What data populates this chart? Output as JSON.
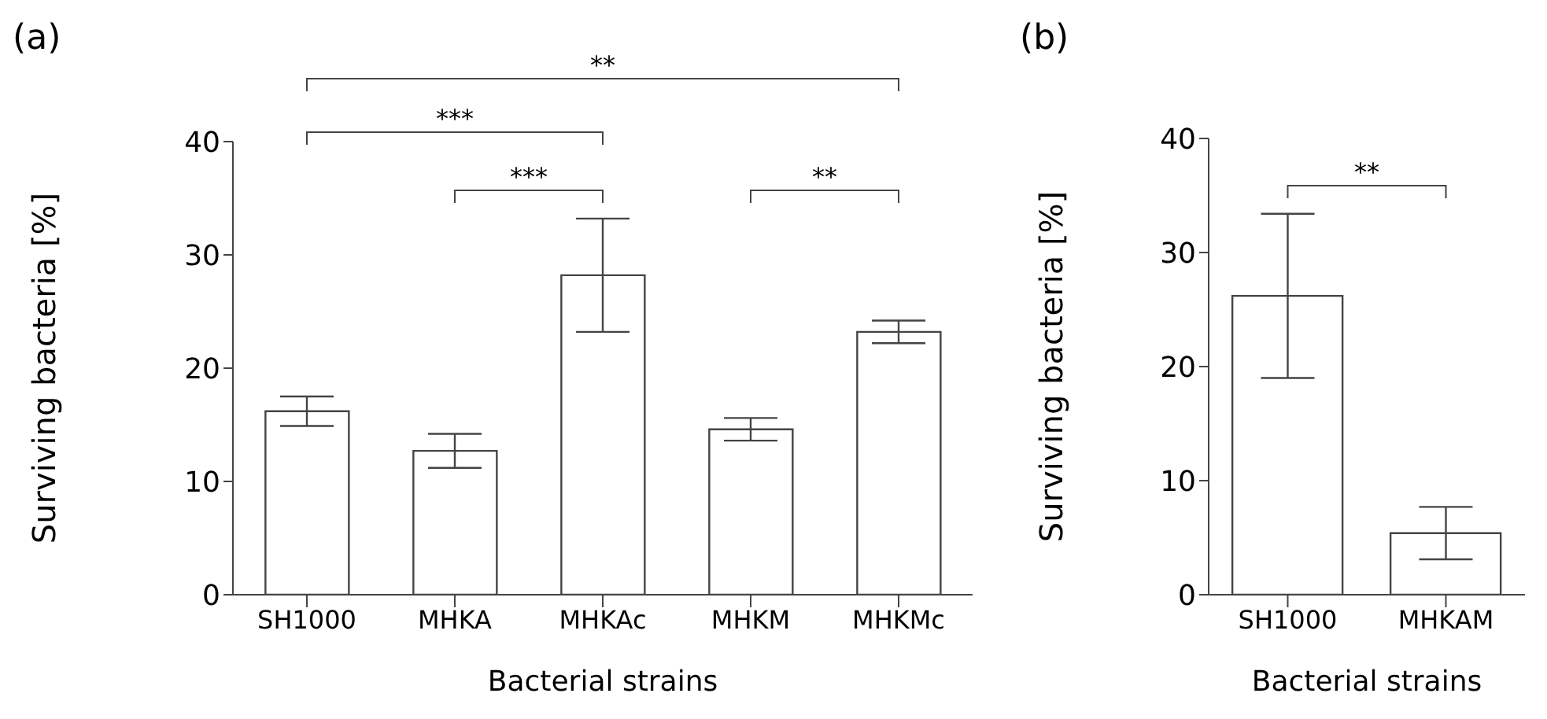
{
  "chart_data": [
    {
      "type": "bar",
      "title": "(a)",
      "xlabel": "Bacterial strains",
      "ylabel": "Surviving bacteria [%]",
      "categories": [
        "SH1000",
        "MHKA",
        "MHKAc",
        "MHKM",
        "MHKMc"
      ],
      "series": [
        {
          "color": "#ffffff",
          "values": [
            16.2,
            12.7,
            28.2,
            14.6,
            23.2
          ],
          "errors": [
            1.3,
            1.5,
            5.0,
            1.0,
            1.0
          ]
        }
      ],
      "ylim": [
        0,
        40
      ],
      "yticks": [
        0,
        10,
        20,
        30,
        40
      ],
      "grid": false,
      "legend": false,
      "annotations": [
        "**",
        "***",
        "***",
        "**"
      ]
    },
    {
      "type": "bar",
      "title": "(b)",
      "xlabel": "Bacterial strains",
      "ylabel": "Surviving bacteria [%]",
      "categories": [
        "SH1000",
        "MHKAM"
      ],
      "series": [
        {
          "color": "#ffffff",
          "values": [
            26.2,
            5.4
          ],
          "errors": [
            7.2,
            2.3
          ]
        }
      ],
      "ylim": [
        0,
        40
      ],
      "yticks": [
        0,
        10,
        20,
        30,
        40
      ],
      "grid": false,
      "legend": false,
      "annotations": [
        "**"
      ]
    }
  ]
}
